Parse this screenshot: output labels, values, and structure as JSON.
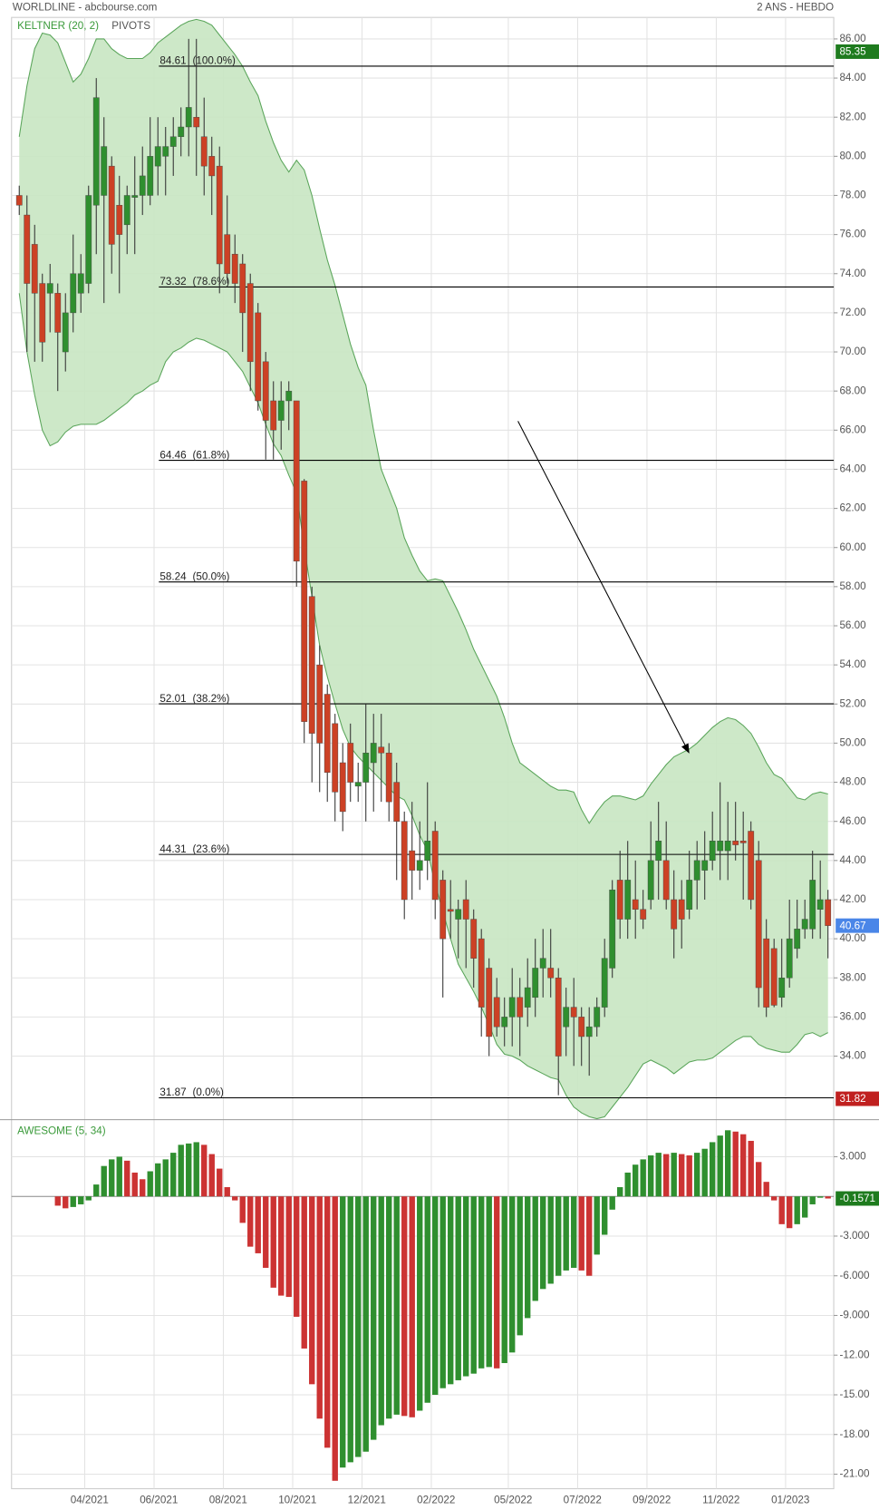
{
  "header": {
    "title": "WORLDLINE - abcbourse.com",
    "period": "2 ANS - HEBDO"
  },
  "chart_data": [
    {
      "type": "candlestick",
      "indicators": [
        "KELTNER (20, 2)",
        "PIVOTS"
      ],
      "open": [
        78,
        77,
        75.5,
        73.5,
        73,
        73,
        70,
        72,
        73,
        73.5,
        77.5,
        78,
        79.5,
        77.5,
        76.5,
        77.9,
        78,
        78,
        79.5,
        80,
        80.5,
        81,
        81.5,
        82,
        81,
        80,
        79.5,
        76,
        75,
        74.5,
        73.5,
        72,
        69.5,
        67.5,
        66.5,
        67.5,
        67.5,
        63.4,
        57.5,
        54,
        52.5,
        51,
        49,
        50,
        47.8,
        48,
        49,
        49.8,
        49.5,
        48,
        46,
        44.5,
        43.5,
        44,
        45.5,
        43,
        41.5,
        41,
        42,
        41,
        40,
        38.5,
        37,
        35.5,
        36,
        37,
        36.5,
        37,
        38.5,
        38.5,
        38,
        35.5,
        36.5,
        36,
        35,
        35.5,
        36.5,
        38.5,
        43,
        41,
        42,
        41.5,
        42,
        44,
        44,
        42,
        42,
        41.5,
        43,
        43.5,
        44,
        44.5,
        44.5,
        45,
        45,
        45.5,
        44,
        40,
        39.5,
        37,
        38,
        39.5,
        40.5,
        40.5,
        41.5,
        42
      ],
      "high": [
        78.5,
        78,
        76.5,
        74,
        74.5,
        73.5,
        73,
        76,
        75,
        78.5,
        84,
        82,
        80,
        79,
        78.5,
        80,
        80.5,
        82,
        82,
        81.5,
        82,
        82.5,
        86,
        86,
        83,
        81,
        80.5,
        78,
        76,
        75,
        74,
        72.5,
        70,
        68.5,
        68.5,
        68.5,
        67.5,
        63.5,
        58,
        55,
        53,
        51.5,
        50,
        51,
        49,
        52,
        51.5,
        51.5,
        50,
        49,
        46.5,
        47,
        46,
        48,
        46,
        43.5,
        43,
        42,
        43,
        41.5,
        40.5,
        39,
        38,
        37,
        38.5,
        38,
        39,
        40,
        40.5,
        40.5,
        38.5,
        37.5,
        38,
        36.5,
        36.5,
        37,
        40,
        43,
        44.5,
        45,
        44,
        42.5,
        46,
        47,
        46,
        43.5,
        43,
        44.5,
        45,
        45.5,
        46.5,
        48,
        47,
        47,
        46.5,
        46,
        45,
        41,
        40,
        40,
        42,
        42,
        42,
        44.5,
        44,
        42.5
      ],
      "low": [
        77,
        70,
        69.5,
        69.5,
        71,
        68,
        69,
        71,
        72,
        73,
        75,
        72.5,
        74,
        73,
        75,
        75,
        77,
        77.5,
        78,
        78,
        79,
        80,
        80,
        79,
        78,
        77,
        73,
        73.5,
        72.5,
        70,
        68,
        67,
        64.5,
        64.5,
        65,
        66,
        58,
        50,
        48,
        47.5,
        47,
        46,
        45.5,
        47,
        47,
        46,
        46.5,
        47,
        46,
        43,
        41,
        42,
        42.5,
        43,
        41,
        37,
        40,
        39,
        38.5,
        37.5,
        35,
        34,
        35,
        34.5,
        34.5,
        34,
        35.5,
        36,
        37,
        37,
        32,
        34,
        33.5,
        33.5,
        33,
        35,
        36,
        38,
        40,
        40,
        40,
        40.5,
        41.5,
        42,
        41.5,
        39,
        39.5,
        41,
        41.5,
        42,
        43.5,
        43,
        43,
        44,
        42,
        41.5,
        36.5,
        36,
        36.5,
        36.5,
        37.5,
        39,
        40,
        40,
        40,
        39
      ],
      "close": [
        77.5,
        73.5,
        73,
        70.5,
        73.5,
        71,
        72,
        74,
        74,
        78,
        83,
        80.5,
        75.5,
        76,
        78,
        78,
        79,
        80,
        80.5,
        80.5,
        81,
        81.5,
        82.5,
        81.5,
        79.5,
        79,
        74.5,
        74,
        73.5,
        72,
        69.5,
        67.5,
        66.5,
        66,
        67.5,
        68,
        59.3,
        51.1,
        50.5,
        50,
        48.5,
        47.5,
        46.5,
        48,
        48,
        49.5,
        50,
        49.5,
        47,
        46,
        42,
        43.5,
        44,
        45,
        42,
        40,
        41.4,
        41.5,
        41,
        39,
        36.5,
        35,
        35.5,
        36,
        37,
        36,
        37.5,
        38.5,
        39,
        38,
        34,
        36.5,
        36,
        35,
        35.5,
        36.5,
        39,
        42.5,
        41,
        43,
        41.5,
        41,
        44,
        45,
        42,
        40.5,
        41,
        43,
        44,
        44,
        45,
        45,
        45,
        44.8,
        44.9,
        42,
        37.5,
        36.5,
        36.6,
        38,
        40,
        40.5,
        41,
        43,
        42,
        40.67
      ],
      "up_color": "#2f8f2f",
      "down_color": "#cc4125",
      "keltner": {
        "color": "#c8e6c2",
        "line_color": "#5aa55a",
        "upper": [
          81,
          83.6,
          85.5,
          86.3,
          86.2,
          85.8,
          84.8,
          83.8,
          84.2,
          85,
          86,
          86,
          85.5,
          85.2,
          85,
          85,
          85,
          85.3,
          85.8,
          86.1,
          86.4,
          86.7,
          86.9,
          87,
          86.9,
          86.7,
          86.2,
          85.7,
          85.2,
          84.6,
          83.8,
          83.1,
          81.8,
          80.7,
          79.8,
          79.2,
          79.8,
          79.3,
          78,
          76.3,
          74.7,
          73.4,
          71.9,
          70.4,
          69.2,
          68.3,
          66,
          64,
          63,
          62,
          60.5,
          59.6,
          58.8,
          58.3,
          58.4,
          58.3,
          57.5,
          56.7,
          55.8,
          54.8,
          54,
          53.2,
          52.4,
          51.3,
          50,
          49,
          48.7,
          48.4,
          48.1,
          47.8,
          47.6,
          47.6,
          47.5,
          46.6,
          45.9,
          46.5,
          47,
          47.3,
          47.3,
          47.2,
          47.1,
          47.3,
          47.9,
          48.4,
          48.9,
          49.3,
          49.5,
          49.7,
          50,
          50.4,
          50.8,
          51.1,
          51.3,
          51.2,
          50.9,
          50.5,
          49.8,
          49,
          48.4,
          48.2,
          47.7,
          47.2,
          47.1,
          47.4,
          47.5,
          47.4
        ],
        "lower": [
          73,
          70,
          67.8,
          66,
          65.2,
          65.4,
          65.9,
          66.2,
          66.3,
          66.3,
          66.3,
          66.5,
          66.8,
          67.1,
          67.4,
          67.8,
          68,
          68.3,
          68.5,
          69.5,
          70,
          70.2,
          70.5,
          70.7,
          70.6,
          70.4,
          70.2,
          70,
          69.5,
          69,
          68.2,
          67.4,
          66.3,
          65.3,
          64.7,
          63.7,
          62.8,
          60,
          57.5,
          55,
          53.4,
          52,
          50.7,
          49.8,
          49.3,
          48.9,
          48.5,
          48.1,
          47.7,
          47.3,
          47.1,
          46.3,
          45.3,
          44.5,
          42.8,
          41.4,
          40,
          38.7,
          38,
          37.3,
          36.5,
          35.6,
          34.6,
          34.1,
          34,
          33.8,
          33.5,
          33.3,
          33.1,
          32.9,
          32.8,
          32,
          31.4,
          31.1,
          30.9,
          30.8,
          30.9,
          31.4,
          31.9,
          32.4,
          33,
          33.6,
          33.8,
          33.6,
          33.4,
          33.1,
          33.4,
          33.7,
          33.8,
          33.8,
          33.9,
          34.2,
          34.5,
          34.8,
          35,
          35,
          34.6,
          34.4,
          34.3,
          34.2,
          34.2,
          34.6,
          35.1,
          35.2,
          35,
          35.2
        ]
      },
      "fib_levels": [
        {
          "value": 84.61,
          "ratio": "(100.0%)"
        },
        {
          "value": 73.32,
          "ratio": "(78.6%)"
        },
        {
          "value": 64.46,
          "ratio": "(61.8%)"
        },
        {
          "value": 58.24,
          "ratio": "(50.0%)"
        },
        {
          "value": 52.01,
          "ratio": "(38.2%)"
        },
        {
          "value": 44.31,
          "ratio": "(23.6%)"
        },
        {
          "value": 31.87,
          "ratio": "(0.0%)"
        }
      ],
      "price_tags": [
        {
          "value": 85.35,
          "color": "#1e7b1e"
        },
        {
          "value": 31.82,
          "color": "#c0201f"
        }
      ],
      "last_tag_color": "#4a86e8",
      "ylim": [
        30.75,
        87.1
      ],
      "yticks": [
        {
          "value": 34,
          "label": "34.00"
        },
        {
          "value": 36,
          "label": "36.00"
        },
        {
          "value": 38,
          "label": "38.00"
        },
        {
          "value": 40,
          "label": "40.00"
        },
        {
          "value": 42,
          "label": "42.00"
        },
        {
          "value": 44,
          "label": "44.00"
        },
        {
          "value": 46,
          "label": "46.00"
        },
        {
          "value": 48,
          "label": "48.00"
        },
        {
          "value": 50,
          "label": "50.00"
        },
        {
          "value": 52,
          "label": "52.00"
        },
        {
          "value": 54,
          "label": "54.00"
        },
        {
          "value": 56,
          "label": "56.00"
        },
        {
          "value": 58,
          "label": "58.00"
        },
        {
          "value": 60,
          "label": "60.00"
        },
        {
          "value": 62,
          "label": "62.00"
        },
        {
          "value": 64,
          "label": "64.00"
        },
        {
          "value": 66,
          "label": "66.00"
        },
        {
          "value": 68,
          "label": "68.00"
        },
        {
          "value": 70,
          "label": "70.00"
        },
        {
          "value": 72,
          "label": "72.00"
        },
        {
          "value": 74,
          "label": "74.00"
        },
        {
          "value": 76,
          "label": "76.00"
        },
        {
          "value": 78,
          "label": "78.00"
        },
        {
          "value": 80,
          "label": "80.00"
        },
        {
          "value": 82,
          "label": "82.00"
        },
        {
          "value": 84,
          "label": "84.00"
        },
        {
          "value": 86,
          "label": "86.00"
        }
      ],
      "grid": true
    },
    {
      "type": "bar",
      "title": "AWESOME (5, 34)",
      "categories": [
        null,
        null,
        null,
        null,
        null,
        null,
        null,
        null,
        null,
        "04/2021",
        null,
        null,
        null,
        null,
        null,
        null,
        null,
        null,
        "06/2021",
        null,
        null,
        null,
        null,
        null,
        null,
        null,
        null,
        "08/2021",
        null,
        null,
        null,
        null,
        null,
        null,
        null,
        null,
        "10/2021",
        null,
        null,
        null,
        null,
        null,
        null,
        null,
        null,
        "12/2021",
        null,
        null,
        null,
        null,
        null,
        null,
        null,
        null,
        "02/2022",
        null,
        null,
        null,
        null,
        null,
        null,
        null,
        null,
        null,
        "05/2022",
        null,
        null,
        null,
        null,
        null,
        null,
        null,
        null,
        "07/2022",
        null,
        null,
        null,
        null,
        null,
        null,
        null,
        null,
        "09/2022",
        null,
        null,
        null,
        null,
        null,
        null,
        null,
        null,
        "11/2022",
        null,
        null,
        null,
        null,
        null,
        null,
        null,
        null,
        "01/2023",
        null,
        null,
        null,
        null,
        null
      ],
      "values": [
        null,
        null,
        null,
        null,
        null,
        -0.7,
        -0.9,
        -0.8,
        -0.6,
        -0.3,
        0.9,
        2.3,
        2.8,
        3.0,
        2.7,
        1.8,
        1.3,
        1.9,
        2.5,
        2.8,
        3.3,
        3.9,
        4.0,
        4.1,
        3.9,
        3.2,
        2.1,
        0.7,
        -0.3,
        -2.0,
        -3.8,
        -4.3,
        -5.4,
        -6.9,
        -7.5,
        -7.6,
        -9.1,
        -11.5,
        -14.2,
        -16.8,
        -19.0,
        -21.5,
        -20.5,
        -20.1,
        -19.7,
        -19.3,
        -18.4,
        -17.3,
        -16.8,
        -16.5,
        -16.6,
        -16.7,
        -16.2,
        -15.6,
        -15.0,
        -14.5,
        -14.2,
        -13.9,
        -13.6,
        -13.4,
        -13.0,
        -12.9,
        -13.0,
        -12.6,
        -11.8,
        -10.5,
        -9.2,
        -7.9,
        -7.0,
        -6.6,
        -6.0,
        -5.6,
        -5.4,
        -5.6,
        -6.0,
        -4.4,
        -2.9,
        -1.0,
        0.7,
        1.8,
        2.4,
        2.8,
        3.1,
        3.3,
        3.2,
        3.3,
        3.2,
        3.1,
        3.3,
        3.6,
        4.1,
        4.6,
        5.0,
        4.9,
        4.7,
        4.2,
        2.6,
        1.1,
        -0.3,
        -2.1,
        -2.4,
        -2.1,
        -1.6,
        -0.6,
        -0.1,
        -0.1571
      ],
      "up_color": "#2f8f2f",
      "down_color": "#cc3333",
      "last_tag_color": "#1e7b1e",
      "ylim": [
        -22.1,
        5.8
      ],
      "yticks": [
        {
          "value": 3,
          "label": "3.000"
        },
        {
          "value": -3,
          "label": "-3.000"
        },
        {
          "value": -6,
          "label": "-6.000"
        },
        {
          "value": -9,
          "label": "-9.000"
        },
        {
          "value": -12,
          "label": "-12.00"
        },
        {
          "value": -15,
          "label": "-15.00"
        },
        {
          "value": -18,
          "label": "-18.00"
        },
        {
          "value": -21,
          "label": "-21.00"
        }
      ],
      "grid": true
    }
  ]
}
